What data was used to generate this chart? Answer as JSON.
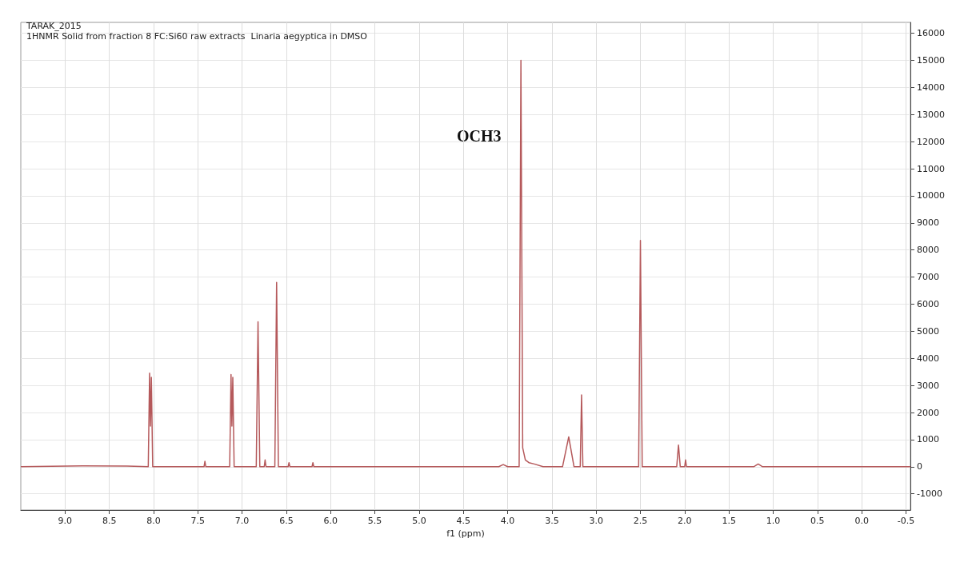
{
  "chart_data": {
    "type": "line",
    "title": "TARAK_2015",
    "subtitle": "1HNMR Solid from fraction 8 FC:Si60 raw extracts  Linaria aegyptica in DMSO",
    "xlabel": "f1 (ppm)",
    "x": [
      9.5,
      8.8,
      8.3,
      8.06,
      8.045,
      8.035,
      8.025,
      8.01,
      7.6,
      7.43,
      7.42,
      7.41,
      7.14,
      7.125,
      7.115,
      7.105,
      7.09,
      6.84,
      6.82,
      6.8,
      6.75,
      6.74,
      6.73,
      6.63,
      6.61,
      6.59,
      6.48,
      6.47,
      6.46,
      6.21,
      6.2,
      6.19,
      4.1,
      4.05,
      4.0,
      3.87,
      3.85,
      3.83,
      3.8,
      3.76,
      3.7,
      3.6,
      3.38,
      3.31,
      3.25,
      3.18,
      3.165,
      3.15,
      2.52,
      2.5,
      2.48,
      2.09,
      2.07,
      2.05,
      2.0,
      1.99,
      1.98,
      1.22,
      1.17,
      1.12,
      -0.55
    ],
    "series": [
      {
        "color": "#b5595b",
        "values": [
          0,
          30,
          20,
          0,
          3450,
          1500,
          3300,
          0,
          0,
          0,
          200,
          0,
          0,
          3400,
          1500,
          3300,
          0,
          0,
          5350,
          0,
          0,
          250,
          0,
          0,
          6800,
          0,
          0,
          150,
          0,
          0,
          150,
          0,
          0,
          80,
          0,
          0,
          15000,
          700,
          250,
          150,
          100,
          0,
          0,
          1100,
          0,
          0,
          2650,
          0,
          0,
          8350,
          0,
          0,
          800,
          0,
          0,
          250,
          0,
          0,
          100,
          0,
          0
        ]
      }
    ],
    "xlim": [
      9.5,
      -0.55
    ],
    "xticks": [
      {
        "value": 9,
        "label": "9.0"
      },
      {
        "value": 8.5,
        "label": "8.5"
      },
      {
        "value": 8,
        "label": "8.0"
      },
      {
        "value": 7.5,
        "label": "7.5"
      },
      {
        "value": 7,
        "label": "7.0"
      },
      {
        "value": 6.5,
        "label": "6.5"
      },
      {
        "value": 6,
        "label": "6.0"
      },
      {
        "value": 5.5,
        "label": "5.5"
      },
      {
        "value": 5,
        "label": "5.0"
      },
      {
        "value": 4.5,
        "label": "4.5"
      },
      {
        "value": 4,
        "label": "4.0"
      },
      {
        "value": 3.5,
        "label": "3.5"
      },
      {
        "value": 3,
        "label": "3.0"
      },
      {
        "value": 2.5,
        "label": "2.5"
      },
      {
        "value": 2,
        "label": "2.0"
      },
      {
        "value": 1.5,
        "label": "1.5"
      },
      {
        "value": 1,
        "label": "1.0"
      },
      {
        "value": 0.5,
        "label": "0.5"
      },
      {
        "value": 0,
        "label": "0.0"
      },
      {
        "value": -0.5,
        "label": "-0.5"
      }
    ],
    "ylim": [
      -1600,
      16400
    ],
    "yticks": [
      -1000,
      0,
      1000,
      2000,
      3000,
      4000,
      5000,
      6000,
      7000,
      8000,
      9000,
      10000,
      11000,
      12000,
      13000,
      14000,
      15000,
      16000
    ],
    "grid": true,
    "annotations": [
      "OCH3"
    ]
  }
}
